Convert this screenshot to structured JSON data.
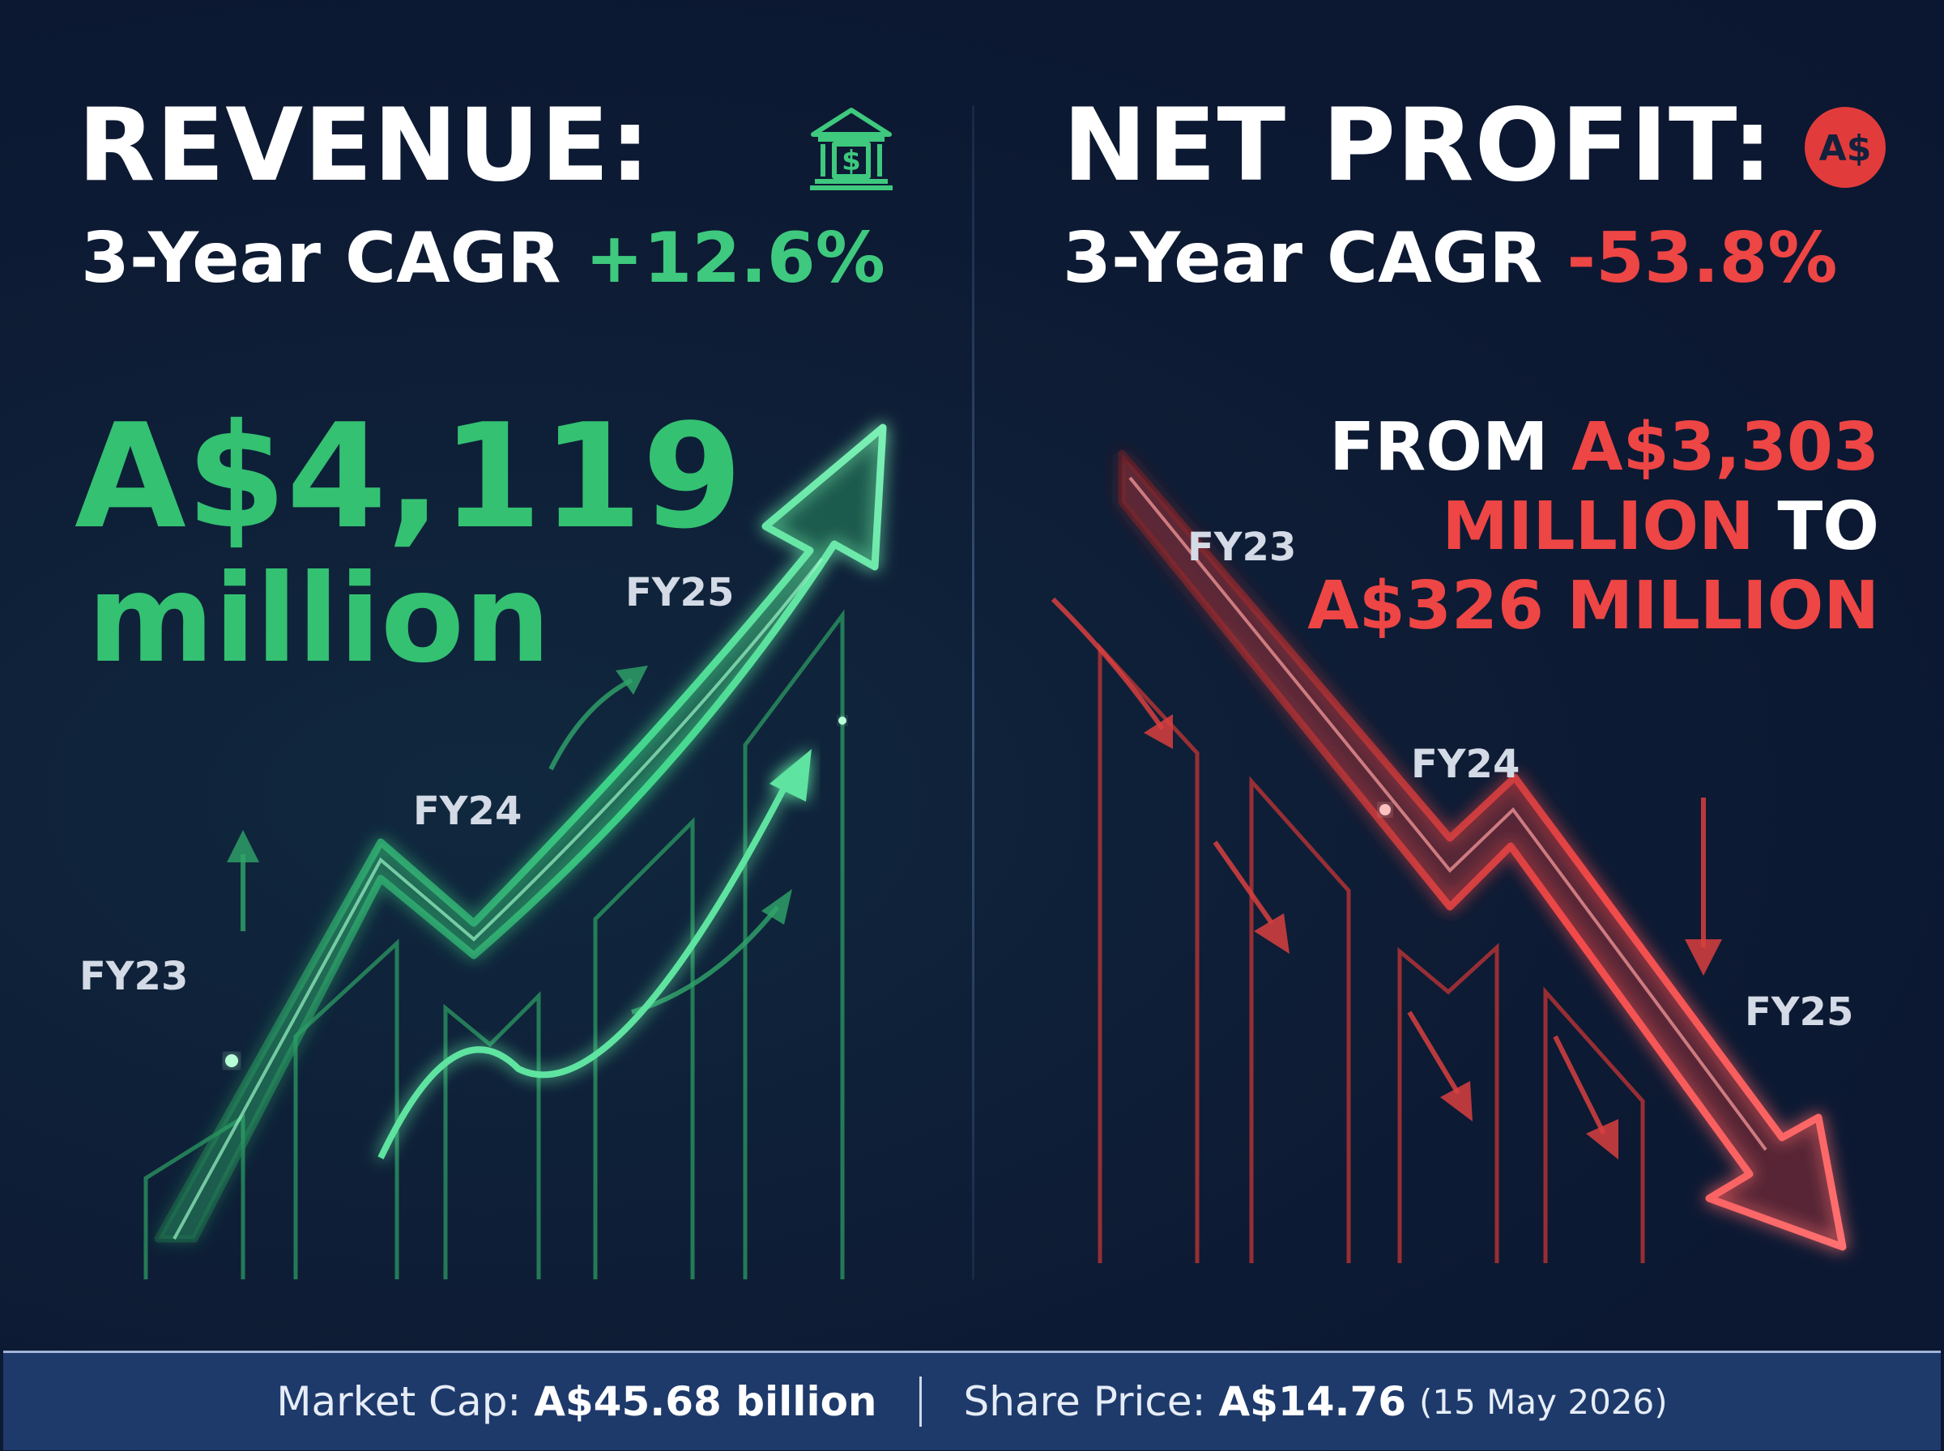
{
  "revenue": {
    "title": "REVENUE:",
    "cagr_label": "3-Year CAGR",
    "cagr_value": "+12.6%",
    "value_line1": "A$4,119",
    "value_line2": "million",
    "icon": "bank-icon",
    "color": "#3ec97e"
  },
  "profit": {
    "title": "NET PROFIT:",
    "cagr_label": "3-Year CAGR",
    "cagr_value": "-53.8%",
    "badge_text": "A$",
    "icon": "currency-badge-icon",
    "from_word": "FROM",
    "from_value": "A$3,303",
    "million_word": "MILLION",
    "to_word": "TO",
    "to_value": "A$326 MILLION",
    "color": "#ee4545"
  },
  "chart_data": [
    {
      "type": "line",
      "trend": "up",
      "categories": [
        "FY23",
        "FY24",
        "FY25"
      ],
      "values": [
        null,
        null,
        4119
      ],
      "unit": "A$ million"
    },
    {
      "type": "line",
      "trend": "down",
      "categories": [
        "FY23",
        "FY24",
        "FY25"
      ],
      "values": [
        3303,
        null,
        326
      ],
      "unit": "A$ million"
    }
  ],
  "footer": {
    "market_cap_label": "Market Cap:",
    "market_cap_value": "A$45.68 billion",
    "share_price_label": "Share Price:",
    "share_price_value": "A$14.76",
    "share_price_date": "(15 May 2026)"
  }
}
